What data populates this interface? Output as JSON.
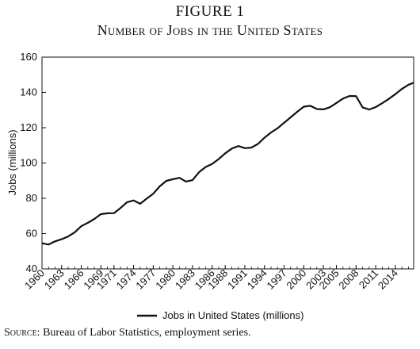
{
  "figure": {
    "label": "FIGURE 1",
    "title": "Number of Jobs in the United States",
    "source_label": "Source:",
    "source_text": "Bureau of Labor Statistics, employment series."
  },
  "chart_data": {
    "type": "line",
    "ylabel": "Jobs (millions)",
    "ylim": [
      40,
      160
    ],
    "yticks": [
      40,
      60,
      80,
      100,
      120,
      140,
      160
    ],
    "xlim": [
      1960,
      2016.8
    ],
    "xticks": [
      1960,
      1963,
      1966,
      1969,
      1971,
      1974,
      1977,
      1980,
      1983,
      1986,
      1988,
      1991,
      1994,
      1997,
      2000,
      2003,
      2005,
      2008,
      2011,
      2014
    ],
    "legend_position": "bottom-center",
    "grid": false,
    "series": [
      {
        "name": "Jobs in United States (millions)",
        "color": "#111111",
        "x": [
          1960,
          1961,
          1962,
          1963,
          1964,
          1965,
          1966,
          1967,
          1968,
          1969,
          1970,
          1971,
          1972,
          1973,
          1974,
          1975,
          1976,
          1977,
          1978,
          1979,
          1980,
          1981,
          1982,
          1983,
          1984,
          1985,
          1986,
          1987,
          1988,
          1989,
          1990,
          1991,
          1992,
          1993,
          1994,
          1995,
          1996,
          1997,
          1998,
          1999,
          2000,
          2001,
          2002,
          2003,
          2004,
          2005,
          2006,
          2007,
          2008,
          2009,
          2010,
          2011,
          2012,
          2013,
          2014,
          2015,
          2016,
          2016.8
        ],
        "y": [
          54.5,
          53.8,
          55.6,
          56.8,
          58.4,
          60.7,
          64.2,
          66.1,
          68.3,
          71.0,
          71.5,
          71.6,
          74.5,
          77.8,
          78.8,
          76.9,
          79.8,
          82.6,
          86.8,
          89.9,
          90.8,
          91.6,
          89.5,
          90.3,
          94.8,
          97.7,
          99.5,
          102.2,
          105.5,
          108.2,
          109.6,
          108.4,
          108.7,
          110.8,
          114.3,
          117.3,
          119.7,
          122.8,
          125.9,
          129.0,
          131.9,
          132.4,
          130.6,
          130.4,
          131.6,
          134.0,
          136.5,
          138.0,
          137.9,
          131.5,
          130.3,
          131.7,
          133.9,
          136.3,
          139.0,
          142.0,
          144.3,
          145.5
        ]
      }
    ]
  }
}
